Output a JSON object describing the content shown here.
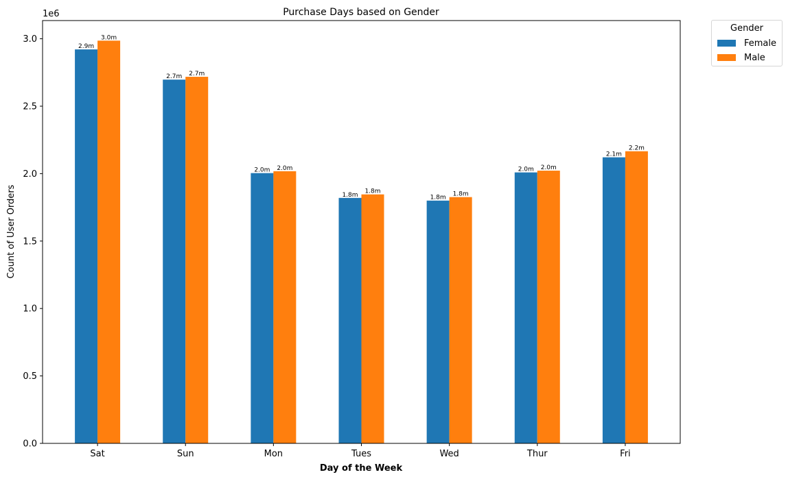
{
  "chart_data": {
    "type": "bar",
    "title": "Purchase Days based on Gender",
    "xlabel": "Day of the Week",
    "ylabel": "Count of User Orders",
    "offset_label": "1e6",
    "categories": [
      "Sat",
      "Sun",
      "Mon",
      "Tues",
      "Wed",
      "Thur",
      "Fri"
    ],
    "series": [
      {
        "name": "Female",
        "color": "#1f77b4",
        "values": [
          2921000,
          2697000,
          2004000,
          1820000,
          1800000,
          2009000,
          2121000
        ],
        "labels": [
          "2.9m",
          "2.7m",
          "2.0m",
          "1.8m",
          "1.8m",
          "2.0m",
          "2.1m"
        ]
      },
      {
        "name": "Male",
        "color": "#ff7f0e",
        "values": [
          2986000,
          2718000,
          2018000,
          1846000,
          1826000,
          2022000,
          2166000
        ],
        "labels": [
          "3.0m",
          "2.7m",
          "2.0m",
          "1.8m",
          "1.8m",
          "2.0m",
          "2.2m"
        ]
      }
    ],
    "ylim": [
      0,
      3135000
    ],
    "yticks": [
      0,
      500000,
      1000000,
      1500000,
      2000000,
      2500000,
      3000000
    ],
    "ytick_labels": [
      "0.0",
      "0.5",
      "1.0",
      "1.5",
      "2.0",
      "2.5",
      "3.0"
    ],
    "grid": false,
    "legend_title": "Gender",
    "legend_position": "outside-top-right"
  }
}
